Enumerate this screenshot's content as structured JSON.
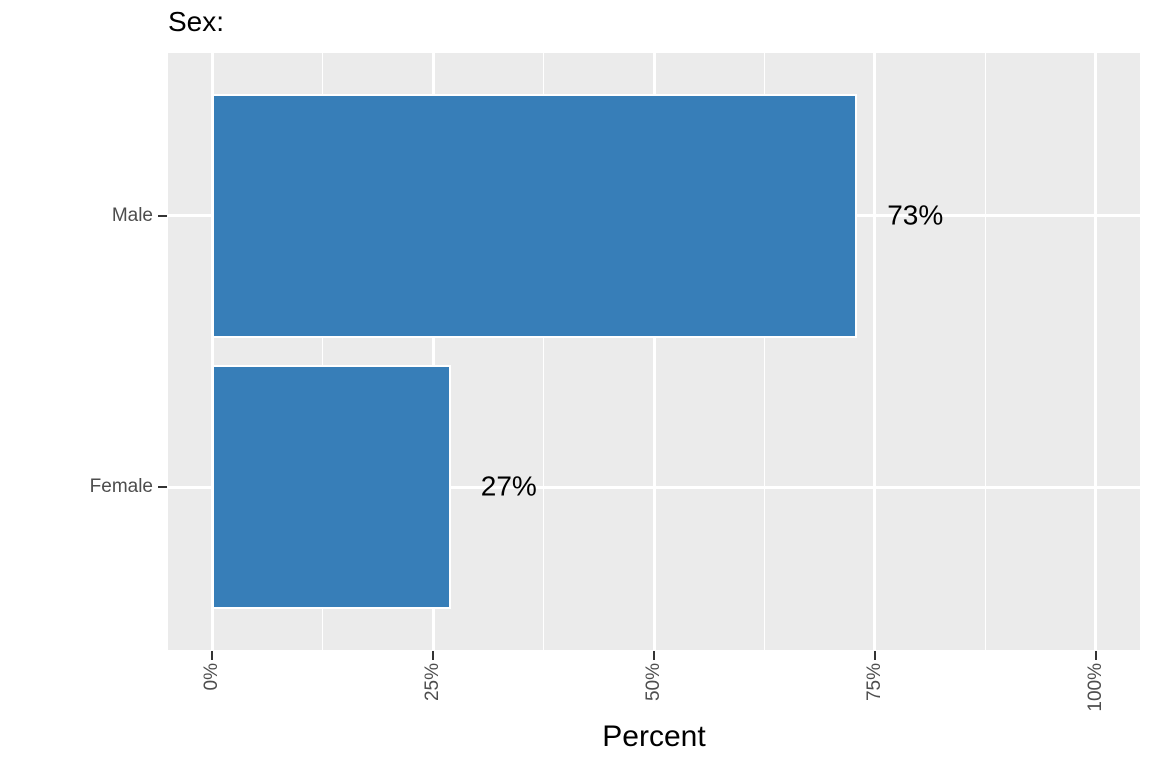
{
  "chart_data": {
    "type": "bar",
    "orientation": "horizontal",
    "title": "Sex:",
    "xlabel": "Percent",
    "ylabel": "",
    "categories": [
      "Male",
      "Female"
    ],
    "values": [
      73,
      27
    ],
    "bar_labels": [
      "73%",
      "27%"
    ],
    "xlim": [
      0,
      100
    ],
    "x_ticks": [
      0,
      25,
      50,
      75,
      100
    ],
    "x_tick_labels": [
      "0%",
      "25%",
      "50%",
      "75%",
      "100%"
    ],
    "x_minor_ticks": [
      12.5,
      37.5,
      62.5,
      87.5
    ],
    "x_tick_rotation_deg": 90,
    "grid": true,
    "legend": "none",
    "colors": {
      "bar_fill": "#377EB8",
      "bar_stroke": "#FFFFFF",
      "panel_background": "#EBEBEB",
      "gridline": "#FFFFFF",
      "axis_text": "#4D4D4D",
      "tick_mark": "#333333",
      "title_text": "#000000",
      "figure_background": "#FFFFFF"
    }
  }
}
